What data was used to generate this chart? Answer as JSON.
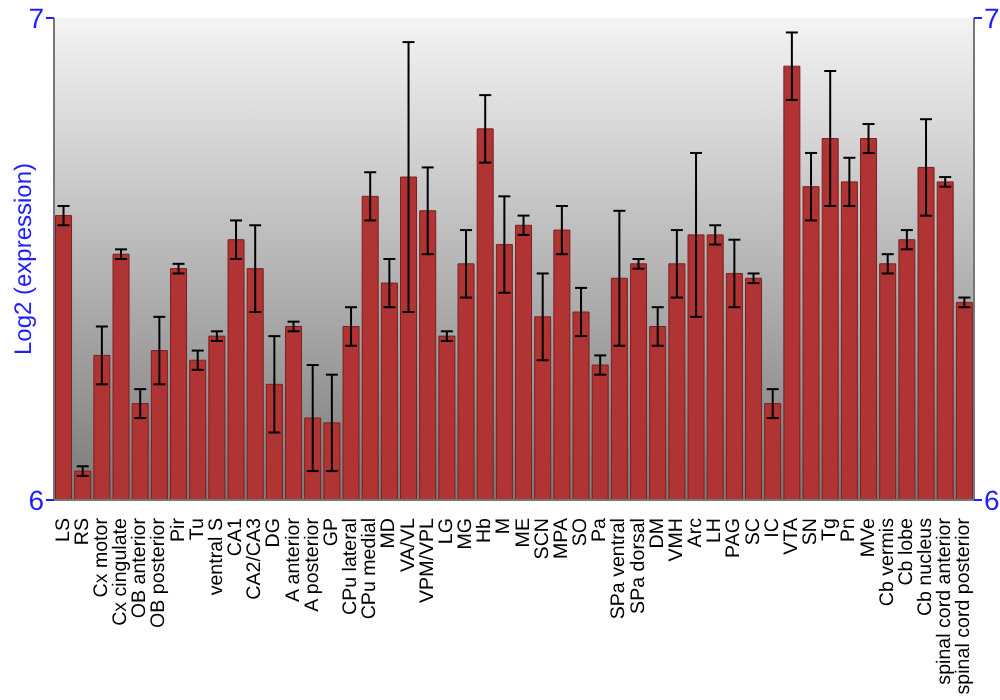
{
  "chart_data": {
    "type": "bar",
    "ylabel": "Log2 (expression)",
    "categories": [
      "LS",
      "RS",
      "Cx motor",
      "Cx cingulate",
      "OB anterior",
      "OB posterior",
      "Pir",
      "Tu",
      "ventral S",
      "CA1",
      "CA2/CA3",
      "DG",
      "A anterior",
      "A posterior",
      "GP",
      "CPu lateral",
      "CPu medial",
      "MD",
      "VA/VL",
      "VPM/VPL",
      "LG",
      "MG",
      "Hb",
      "M",
      "ME",
      "SCN",
      "MPA",
      "SO",
      "Pa",
      "SPa ventral",
      "SPa dorsal",
      "DM",
      "VMH",
      "Arc",
      "LH",
      "PAG",
      "SC",
      "IC",
      "VTA",
      "SN",
      "Tg",
      "Pn",
      "MVe",
      "Cb vermis",
      "Cb lobe",
      "Cb nucleus",
      "spinal cord anterior",
      "spinal cord posterior"
    ],
    "values": [
      6.59,
      6.06,
      6.3,
      6.51,
      6.2,
      6.31,
      6.48,
      6.29,
      6.34,
      6.54,
      6.48,
      6.24,
      6.36,
      6.17,
      6.16,
      6.36,
      6.63,
      6.45,
      6.67,
      6.6,
      6.34,
      6.49,
      6.77,
      6.53,
      6.57,
      6.38,
      6.56,
      6.39,
      6.28,
      6.46,
      6.49,
      6.36,
      6.49,
      6.55,
      6.55,
      6.47,
      6.46,
      6.2,
      6.9,
      6.65,
      6.75,
      6.66,
      6.75,
      6.49,
      6.54,
      6.69,
      6.66,
      6.41
    ],
    "errors": [
      0.02,
      0.01,
      0.06,
      0.01,
      0.03,
      0.07,
      0.01,
      0.02,
      0.01,
      0.04,
      0.09,
      0.1,
      0.01,
      0.11,
      0.1,
      0.04,
      0.05,
      0.05,
      0.28,
      0.09,
      0.01,
      0.07,
      0.07,
      0.1,
      0.02,
      0.09,
      0.05,
      0.05,
      0.02,
      0.14,
      0.01,
      0.04,
      0.07,
      0.17,
      0.02,
      0.07,
      0.01,
      0.03,
      0.07,
      0.07,
      0.14,
      0.05,
      0.03,
      0.02,
      0.02,
      0.1,
      0.01,
      0.01
    ],
    "color": "#b03434",
    "ylim": [
      6,
      7
    ],
    "yticks": [
      6,
      7
    ],
    "y2lim": [
      6,
      7
    ],
    "y2ticks": [
      6,
      7
    ]
  }
}
